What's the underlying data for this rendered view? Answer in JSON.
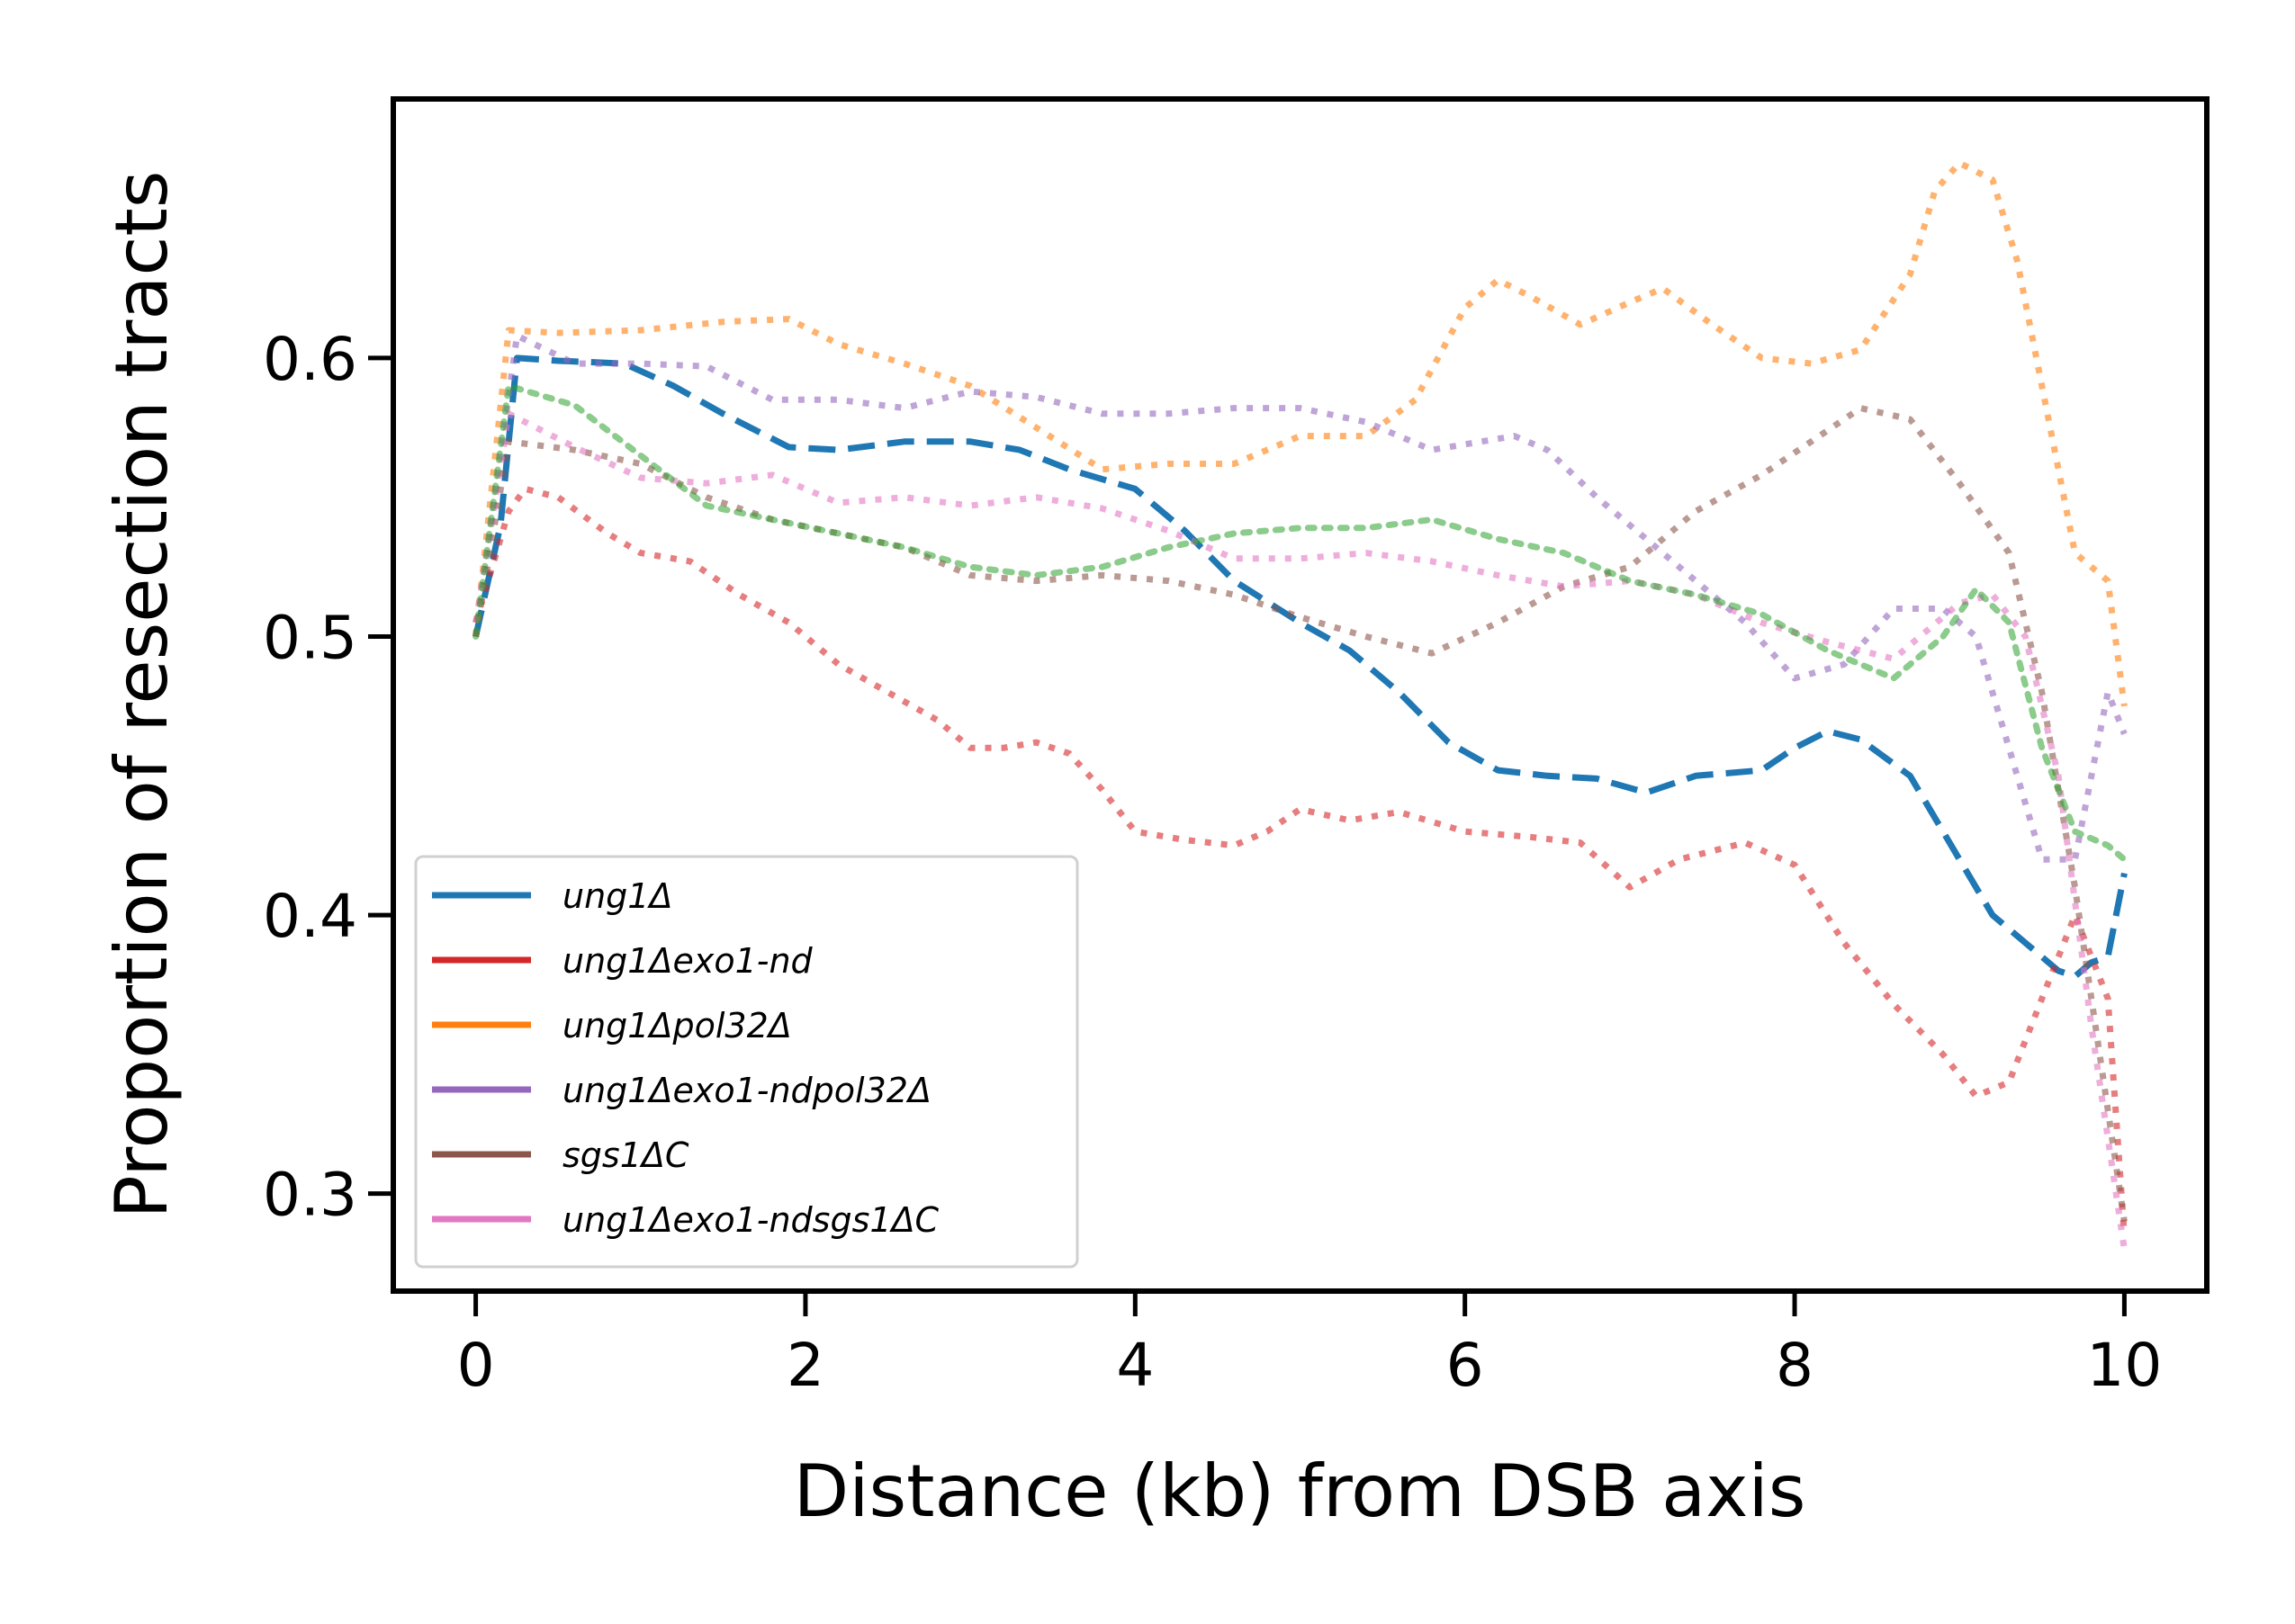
{
  "chart_data": {
    "type": "line",
    "title": "",
    "xlabel": "Distance (kb) from DSB axis",
    "ylabel": "Proportion of resection tracts",
    "xlim": [
      -0.5,
      10.5
    ],
    "ylim": [
      0.265,
      0.693
    ],
    "x_ticks": [
      0,
      2,
      4,
      6,
      8,
      10
    ],
    "x_tick_labels": [
      "0",
      "2",
      "4",
      "6",
      "8",
      "10"
    ],
    "y_ticks": [
      0.3,
      0.4,
      0.5,
      0.6
    ],
    "y_tick_labels": [
      "0.3",
      "0.4",
      "0.5",
      "0.6"
    ],
    "grid": false,
    "legend_position": "lower-left",
    "series": [
      {
        "name": "ung1Δ",
        "color": "#1f77b4",
        "style": "dashed",
        "points": [
          [
            0,
            0.5
          ],
          [
            0.15,
            0.54
          ],
          [
            0.25,
            0.6
          ],
          [
            0.5,
            0.599
          ],
          [
            0.9,
            0.598
          ],
          [
            1.2,
            0.59
          ],
          [
            1.5,
            0.58
          ],
          [
            1.9,
            0.568
          ],
          [
            2.2,
            0.567
          ],
          [
            2.6,
            0.57
          ],
          [
            3.0,
            0.57
          ],
          [
            3.3,
            0.567
          ],
          [
            3.6,
            0.56
          ],
          [
            4.0,
            0.553
          ],
          [
            4.3,
            0.538
          ],
          [
            4.6,
            0.52
          ],
          [
            5.0,
            0.505
          ],
          [
            5.3,
            0.495
          ],
          [
            5.6,
            0.48
          ],
          [
            5.9,
            0.462
          ],
          [
            6.2,
            0.452
          ],
          [
            6.5,
            0.45
          ],
          [
            6.8,
            0.449
          ],
          [
            7.1,
            0.444
          ],
          [
            7.4,
            0.45
          ],
          [
            7.8,
            0.452
          ],
          [
            8.0,
            0.46
          ],
          [
            8.2,
            0.466
          ],
          [
            8.4,
            0.463
          ],
          [
            8.7,
            0.45
          ],
          [
            9.0,
            0.42
          ],
          [
            9.2,
            0.4
          ],
          [
            9.4,
            0.39
          ],
          [
            9.6,
            0.38
          ],
          [
            9.7,
            0.378
          ],
          [
            9.8,
            0.383
          ],
          [
            9.9,
            0.385
          ],
          [
            10.0,
            0.415
          ]
        ]
      },
      {
        "name": "ung1Δexo1-nd",
        "color": "#d62728",
        "style": "solid",
        "points": [
          [
            0,
            0.505
          ],
          [
            0.2,
            0.545
          ],
          [
            0.3,
            0.553
          ],
          [
            0.5,
            0.55
          ],
          [
            0.8,
            0.537
          ],
          [
            1.0,
            0.53
          ],
          [
            1.3,
            0.527
          ],
          [
            1.6,
            0.515
          ],
          [
            1.9,
            0.505
          ],
          [
            2.2,
            0.49
          ],
          [
            2.5,
            0.48
          ],
          [
            2.8,
            0.47
          ],
          [
            3.0,
            0.46
          ],
          [
            3.2,
            0.46
          ],
          [
            3.4,
            0.462
          ],
          [
            3.6,
            0.458
          ],
          [
            3.8,
            0.445
          ],
          [
            4.0,
            0.43
          ],
          [
            4.3,
            0.427
          ],
          [
            4.6,
            0.425
          ],
          [
            4.8,
            0.43
          ],
          [
            5.0,
            0.438
          ],
          [
            5.3,
            0.434
          ],
          [
            5.6,
            0.437
          ],
          [
            6.0,
            0.43
          ],
          [
            6.4,
            0.428
          ],
          [
            6.7,
            0.426
          ],
          [
            7.0,
            0.41
          ],
          [
            7.3,
            0.42
          ],
          [
            7.7,
            0.426
          ],
          [
            8.0,
            0.418
          ],
          [
            8.3,
            0.39
          ],
          [
            8.6,
            0.368
          ],
          [
            8.9,
            0.35
          ],
          [
            9.1,
            0.335
          ],
          [
            9.3,
            0.34
          ],
          [
            9.5,
            0.37
          ],
          [
            9.7,
            0.4
          ],
          [
            9.9,
            0.37
          ],
          [
            10.0,
            0.285
          ]
        ]
      },
      {
        "name": "ung1Δpol32Δ",
        "color": "#ff7f0e",
        "style": "solid",
        "points": [
          [
            0,
            0.5
          ],
          [
            0.2,
            0.61
          ],
          [
            0.5,
            0.609
          ],
          [
            1.0,
            0.61
          ],
          [
            1.5,
            0.613
          ],
          [
            1.9,
            0.614
          ],
          [
            2.2,
            0.605
          ],
          [
            2.6,
            0.598
          ],
          [
            3.0,
            0.59
          ],
          [
            3.4,
            0.575
          ],
          [
            3.8,
            0.56
          ],
          [
            4.2,
            0.562
          ],
          [
            4.6,
            0.562
          ],
          [
            5.0,
            0.572
          ],
          [
            5.4,
            0.572
          ],
          [
            5.7,
            0.585
          ],
          [
            6.0,
            0.618
          ],
          [
            6.2,
            0.628
          ],
          [
            6.4,
            0.622
          ],
          [
            6.7,
            0.612
          ],
          [
            7.0,
            0.62
          ],
          [
            7.2,
            0.625
          ],
          [
            7.5,
            0.612
          ],
          [
            7.8,
            0.6
          ],
          [
            8.1,
            0.598
          ],
          [
            8.4,
            0.603
          ],
          [
            8.7,
            0.63
          ],
          [
            8.85,
            0.66
          ],
          [
            9.0,
            0.67
          ],
          [
            9.2,
            0.664
          ],
          [
            9.35,
            0.635
          ],
          [
            9.5,
            0.59
          ],
          [
            9.7,
            0.53
          ],
          [
            9.9,
            0.52
          ],
          [
            10.0,
            0.475
          ]
        ]
      },
      {
        "name": "ung1Δexo1-ndpol32Δ",
        "color": "#9467bd",
        "style": "solid",
        "points": [
          [
            0,
            0.5
          ],
          [
            0.25,
            0.608
          ],
          [
            0.6,
            0.598
          ],
          [
            1.0,
            0.598
          ],
          [
            1.4,
            0.597
          ],
          [
            1.8,
            0.585
          ],
          [
            2.2,
            0.585
          ],
          [
            2.6,
            0.582
          ],
          [
            3.0,
            0.588
          ],
          [
            3.4,
            0.586
          ],
          [
            3.8,
            0.58
          ],
          [
            4.2,
            0.58
          ],
          [
            4.6,
            0.582
          ],
          [
            5.0,
            0.582
          ],
          [
            5.4,
            0.577
          ],
          [
            5.8,
            0.567
          ],
          [
            6.1,
            0.57
          ],
          [
            6.3,
            0.572
          ],
          [
            6.5,
            0.567
          ],
          [
            6.8,
            0.55
          ],
          [
            7.1,
            0.535
          ],
          [
            7.4,
            0.52
          ],
          [
            7.7,
            0.505
          ],
          [
            8.0,
            0.485
          ],
          [
            8.3,
            0.49
          ],
          [
            8.6,
            0.51
          ],
          [
            8.9,
            0.51
          ],
          [
            9.1,
            0.5
          ],
          [
            9.3,
            0.46
          ],
          [
            9.5,
            0.42
          ],
          [
            9.7,
            0.42
          ],
          [
            9.9,
            0.48
          ],
          [
            10.0,
            0.465
          ]
        ]
      },
      {
        "name": "sgs1ΔC",
        "color": "#8c564b",
        "style": "solid",
        "points": [
          [
            0,
            0.5
          ],
          [
            0.2,
            0.57
          ],
          [
            0.6,
            0.567
          ],
          [
            1.0,
            0.562
          ],
          [
            1.4,
            0.55
          ],
          [
            1.8,
            0.542
          ],
          [
            2.2,
            0.537
          ],
          [
            2.6,
            0.532
          ],
          [
            3.0,
            0.522
          ],
          [
            3.4,
            0.52
          ],
          [
            3.8,
            0.522
          ],
          [
            4.2,
            0.52
          ],
          [
            4.6,
            0.515
          ],
          [
            5.0,
            0.507
          ],
          [
            5.4,
            0.5
          ],
          [
            5.8,
            0.494
          ],
          [
            6.2,
            0.505
          ],
          [
            6.6,
            0.518
          ],
          [
            7.0,
            0.525
          ],
          [
            7.4,
            0.545
          ],
          [
            7.8,
            0.558
          ],
          [
            8.1,
            0.57
          ],
          [
            8.4,
            0.582
          ],
          [
            8.7,
            0.578
          ],
          [
            9.0,
            0.555
          ],
          [
            9.3,
            0.53
          ],
          [
            9.5,
            0.48
          ],
          [
            9.7,
            0.41
          ],
          [
            9.9,
            0.33
          ],
          [
            10.0,
            0.29
          ]
        ]
      },
      {
        "name": "ung1Δexo1-ndsgs1ΔC",
        "color": "#e377c2",
        "style": "solid",
        "points": [
          [
            0,
            0.505
          ],
          [
            0.2,
            0.58
          ],
          [
            0.6,
            0.568
          ],
          [
            1.0,
            0.557
          ],
          [
            1.4,
            0.555
          ],
          [
            1.8,
            0.558
          ],
          [
            2.2,
            0.548
          ],
          [
            2.6,
            0.55
          ],
          [
            3.0,
            0.547
          ],
          [
            3.4,
            0.55
          ],
          [
            3.8,
            0.546
          ],
          [
            4.2,
            0.538
          ],
          [
            4.6,
            0.528
          ],
          [
            5.0,
            0.528
          ],
          [
            5.4,
            0.53
          ],
          [
            5.8,
            0.527
          ],
          [
            6.2,
            0.522
          ],
          [
            6.6,
            0.518
          ],
          [
            7.0,
            0.52
          ],
          [
            7.4,
            0.515
          ],
          [
            7.8,
            0.505
          ],
          [
            8.2,
            0.498
          ],
          [
            8.6,
            0.492
          ],
          [
            9.0,
            0.512
          ],
          [
            9.2,
            0.515
          ],
          [
            9.4,
            0.5
          ],
          [
            9.6,
            0.45
          ],
          [
            9.8,
            0.36
          ],
          [
            10.0,
            0.28
          ]
        ]
      },
      {
        "name": "",
        "color": "#2ca02c",
        "style": "dotted",
        "points": [
          [
            0,
            0.5
          ],
          [
            0.2,
            0.59
          ],
          [
            0.6,
            0.583
          ],
          [
            1.0,
            0.565
          ],
          [
            1.4,
            0.547
          ],
          [
            1.8,
            0.542
          ],
          [
            2.2,
            0.537
          ],
          [
            2.6,
            0.532
          ],
          [
            3.0,
            0.525
          ],
          [
            3.4,
            0.522
          ],
          [
            3.8,
            0.525
          ],
          [
            4.2,
            0.532
          ],
          [
            4.6,
            0.537
          ],
          [
            5.0,
            0.539
          ],
          [
            5.4,
            0.539
          ],
          [
            5.8,
            0.542
          ],
          [
            6.2,
            0.535
          ],
          [
            6.6,
            0.53
          ],
          [
            7.0,
            0.52
          ],
          [
            7.4,
            0.515
          ],
          [
            7.8,
            0.508
          ],
          [
            8.2,
            0.495
          ],
          [
            8.6,
            0.485
          ],
          [
            8.9,
            0.5
          ],
          [
            9.1,
            0.517
          ],
          [
            9.3,
            0.505
          ],
          [
            9.5,
            0.46
          ],
          [
            9.7,
            0.43
          ],
          [
            9.9,
            0.425
          ],
          [
            10.0,
            0.42
          ]
        ]
      }
    ]
  }
}
